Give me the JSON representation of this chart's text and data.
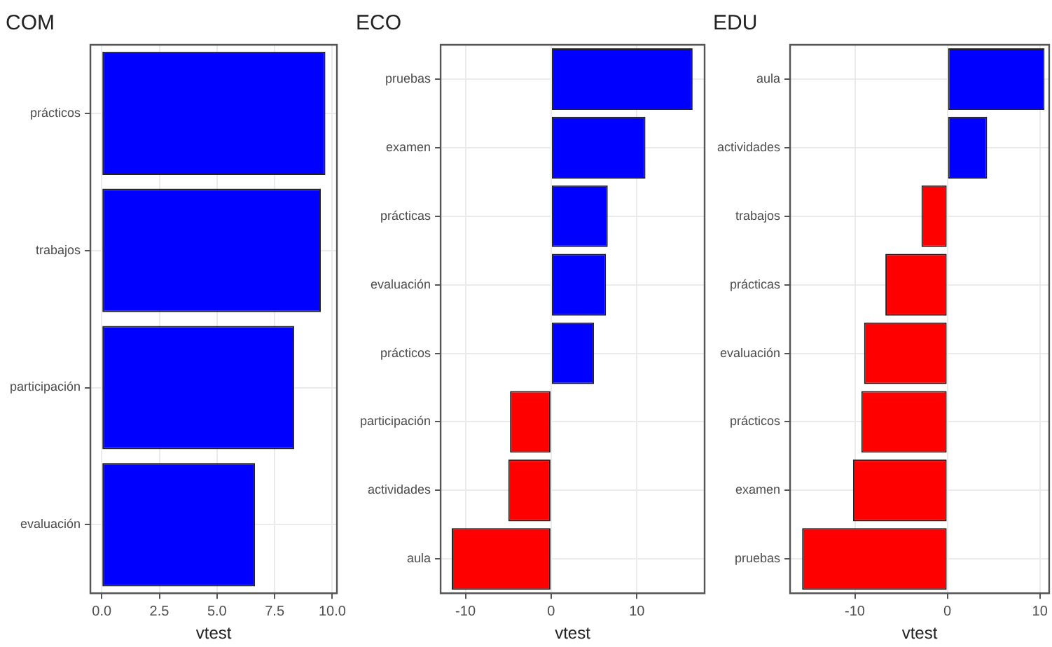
{
  "chart_data": [
    {
      "type": "bar",
      "orientation": "horizontal",
      "title": "COM",
      "xlabel": "vtest",
      "categories": [
        "prácticos",
        "trabajos",
        "participación",
        "evaluación"
      ],
      "values": [
        9.7,
        9.5,
        8.35,
        6.65
      ],
      "colors": [
        "#0000ff",
        "#0000ff",
        "#0000ff",
        "#0000ff"
      ],
      "xlim": [
        -0.49,
        10.2
      ],
      "xticks": [
        {
          "value": 0,
          "label": "0.0"
        },
        2.5,
        {
          "value": 5,
          "label": "5.0"
        },
        7.5,
        {
          "value": 10,
          "label": "10.0"
        }
      ],
      "grid": true
    },
    {
      "type": "bar",
      "orientation": "horizontal",
      "title": "ECO",
      "xlabel": "vtest",
      "categories": [
        "pruebas",
        "examen",
        "prácticas",
        "evaluación",
        "prácticos",
        "participación",
        "actividades",
        "aula"
      ],
      "values": [
        16.5,
        11.0,
        6.6,
        6.4,
        5.0,
        -4.8,
        -5.0,
        -11.6
      ],
      "colors": [
        "#0000ff",
        "#0000ff",
        "#0000ff",
        "#0000ff",
        "#0000ff",
        "#ff0000",
        "#ff0000",
        "#ff0000"
      ],
      "xlim": [
        -12.9,
        17.9
      ],
      "xticks": [
        -10,
        0,
        10
      ],
      "grid": true
    },
    {
      "type": "bar",
      "orientation": "horizontal",
      "title": "EDU",
      "xlabel": "vtest",
      "categories": [
        "aula",
        "actividades",
        "trabajos",
        "prácticas",
        "evaluación",
        "prácticos",
        "examen",
        "pruebas"
      ],
      "values": [
        10.5,
        4.3,
        -2.8,
        -6.7,
        -9.0,
        -9.3,
        -10.2,
        -15.7
      ],
      "colors": [
        "#0000ff",
        "#0000ff",
        "#ff0000",
        "#ff0000",
        "#ff0000",
        "#ff0000",
        "#ff0000",
        "#ff0000"
      ],
      "xlim": [
        -17.0,
        11.0
      ],
      "xticks": [
        -10,
        0,
        10
      ],
      "grid": true
    }
  ]
}
